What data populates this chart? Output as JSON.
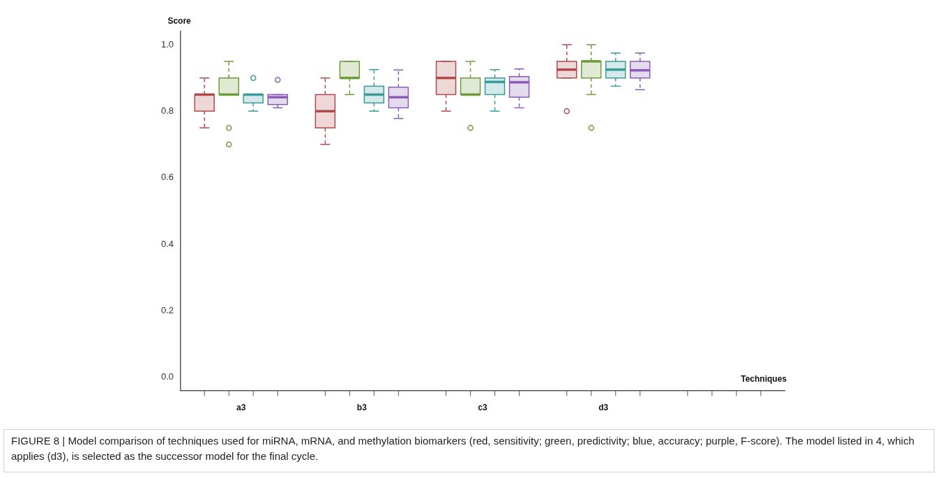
{
  "chart_data": {
    "type": "box",
    "ylabel": "Score",
    "xlabel": "Techniques",
    "categories": [
      "a3",
      "b3",
      "c3",
      "d3",
      null
    ],
    "ylim": [
      -0.04,
      1.04
    ],
    "yticks": [
      {
        "value": 0,
        "label": "0.0"
      },
      {
        "value": 0.2,
        "label": "0.2"
      },
      {
        "value": 0.4,
        "label": "0.4"
      },
      {
        "value": 0.6,
        "label": "0.6"
      },
      {
        "value": 0.8,
        "label": "0.8"
      },
      {
        "value": 1,
        "label": "1.0"
      }
    ],
    "grid": false,
    "legend": false,
    "series": [
      {
        "color": "#b04a4a",
        "boxes": [
          {
            "low": 0.75,
            "q1": 0.8,
            "median": 0.85,
            "q3": 0.85,
            "high": 0.9
          },
          {
            "low": 0.7,
            "q1": 0.75,
            "median": 0.8,
            "q3": 0.85,
            "high": 0.9
          },
          {
            "low": 0.8,
            "q1": 0.85,
            "median": 0.9,
            "q3": 0.95,
            "high": 0.95
          },
          {
            "low": 0.9,
            "q1": 0.9,
            "median": 0.925,
            "q3": 0.95,
            "high": 1.0,
            "outliers": [
              0.8
            ]
          },
          null
        ]
      },
      {
        "color": "#6f9a3a",
        "boxes": [
          {
            "low": 0.85,
            "q1": 0.85,
            "median": 0.85,
            "q3": 0.9,
            "high": 0.95,
            "outliers": [
              0.75,
              0.7
            ]
          },
          {
            "low": 0.85,
            "q1": 0.9,
            "median": 0.9,
            "q3": 0.95,
            "high": 0.95
          },
          {
            "low": 0.85,
            "q1": 0.85,
            "median": 0.85,
            "q3": 0.9,
            "high": 0.95,
            "outliers": [
              0.75
            ]
          },
          {
            "low": 0.85,
            "q1": 0.9,
            "median": 0.95,
            "q3": 0.95,
            "high": 1.0,
            "outliers": [
              0.75
            ]
          },
          null
        ]
      },
      {
        "color": "#3a9a9a",
        "boxes": [
          {
            "low": 0.8,
            "q1": 0.825,
            "median": 0.85,
            "q3": 0.85,
            "high": 0.85,
            "outliers": [
              0.9
            ]
          },
          {
            "low": 0.8,
            "q1": 0.825,
            "median": 0.85,
            "q3": 0.875,
            "high": 0.925
          },
          {
            "low": 0.8,
            "q1": 0.85,
            "median": 0.888,
            "q3": 0.9,
            "high": 0.925
          },
          {
            "low": 0.875,
            "q1": 0.9,
            "median": 0.925,
            "q3": 0.95,
            "high": 0.975
          },
          null
        ]
      },
      {
        "color": "#8a5cb8",
        "boxes": [
          {
            "low": 0.81,
            "q1": 0.82,
            "median": 0.842,
            "q3": 0.85,
            "high": 0.85,
            "outliers": [
              0.894
            ]
          },
          {
            "low": 0.778,
            "q1": 0.81,
            "median": 0.842,
            "q3": 0.872,
            "high": 0.924
          },
          {
            "low": 0.81,
            "q1": 0.842,
            "median": 0.887,
            "q3": 0.904,
            "high": 0.927
          },
          {
            "low": 0.865,
            "q1": 0.9,
            "median": 0.923,
            "q3": 0.95,
            "high": 0.975
          },
          null
        ]
      }
    ],
    "annotations": [
      "FIGURE 8 | Model comparison of techniques used for miRNA, mRNA, and methylation biomarkers (red, sensitivity; green, predictivity; blue, accuracy; purple, F-score). The model listed in 4, which applies (d3), is selected as the successor model for the final cycle."
    ]
  }
}
